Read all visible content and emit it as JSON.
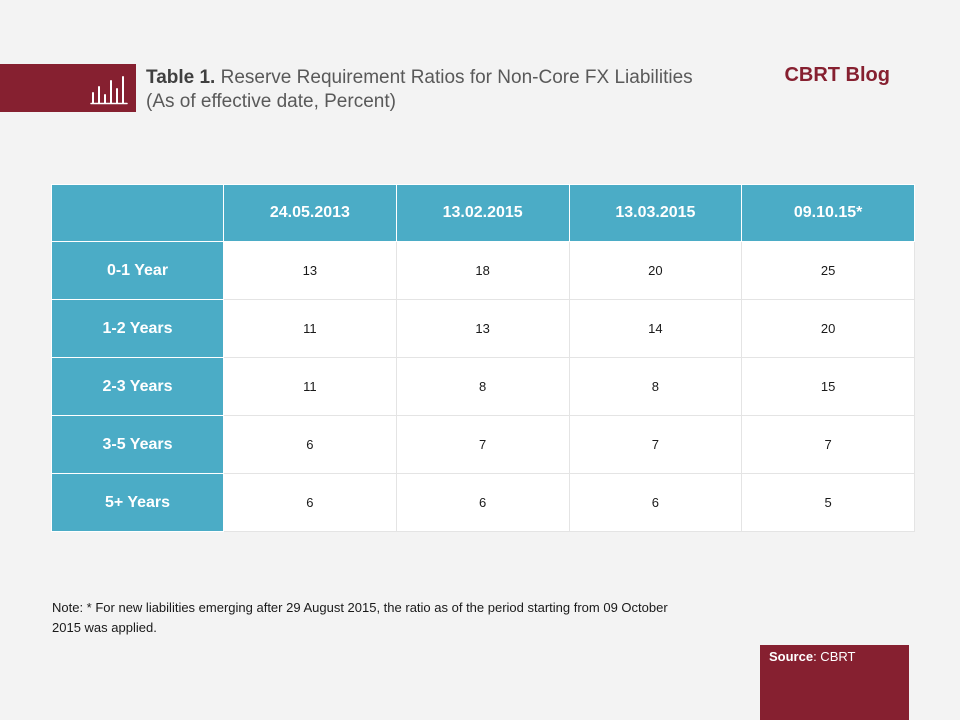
{
  "header": {
    "title_prefix": "Table 1.",
    "title_rest": " Reserve Requirement Ratios for Non-Core FX Liabilities  (As of effective date, Percent)",
    "blog": "CBRT Blog",
    "icon": "bar-chart-icon",
    "accent_color": "#862030"
  },
  "chart_data": {
    "type": "table",
    "columns": [
      "",
      "24.05.2013",
      "13.02.2015",
      "13.03.2015",
      "09.10.15*"
    ],
    "rows": [
      {
        "label": "0-1 Year",
        "values": [
          "13",
          "18",
          "20",
          "25"
        ]
      },
      {
        "label": "1-2 Years",
        "values": [
          "11",
          "13",
          "14",
          "20"
        ]
      },
      {
        "label": "2-3 Years",
        "values": [
          "11",
          "8",
          "8",
          "15"
        ]
      },
      {
        "label": "3-5 Years",
        "values": [
          "6",
          "7",
          "7",
          "7"
        ]
      },
      {
        "label": "5+ Years",
        "values": [
          "6",
          "6",
          "6",
          "5"
        ]
      }
    ],
    "header_color": "#4bacc6"
  },
  "footer": {
    "note": "Note: * For new liabilities emerging after 29 August 2015, the ratio as of the period starting from 09 October 2015 was applied.",
    "source_label": "Source",
    "source_value": ": CBRT"
  }
}
